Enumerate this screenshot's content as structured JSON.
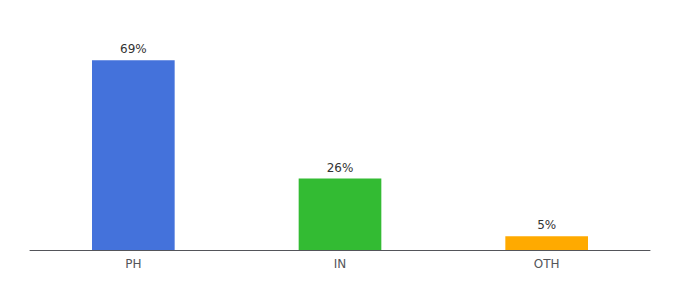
{
  "chart_data": {
    "type": "bar",
    "categories": [
      "PH",
      "IN",
      "OTH"
    ],
    "values": [
      69,
      26,
      5
    ],
    "value_labels": [
      "69%",
      "26%",
      "5%"
    ],
    "colors": [
      "#4472db",
      "#33bb33",
      "#ffaa00"
    ],
    "data_labels": true,
    "ylim": [
      0,
      80
    ],
    "grid": false,
    "tick_labels": "x"
  }
}
